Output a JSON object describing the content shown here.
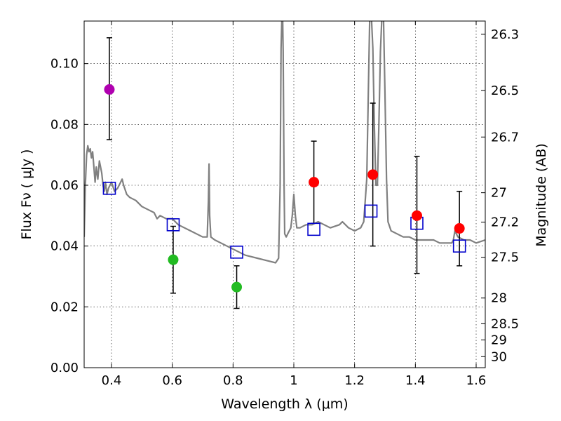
{
  "chart_data": {
    "type": "scatter",
    "title": "",
    "xlabel": "Wavelength  λ (μm)",
    "ylabel": "Flux  Fν  ( μJy )",
    "y2label": "Magnitude (AB)",
    "xlim": [
      0.31,
      1.63
    ],
    "ylim": [
      0.0,
      0.114
    ],
    "grid": true,
    "x_ticks": [
      0.4,
      0.6,
      0.8,
      1.0,
      1.2,
      1.4,
      1.6
    ],
    "x_tick_labels": [
      "0.4",
      "0.6",
      "0.8",
      "1",
      "1.2",
      "1.4",
      "1.6"
    ],
    "y_ticks": [
      0.0,
      0.02,
      0.04,
      0.06,
      0.08,
      0.1
    ],
    "y_tick_labels": [
      "0.00",
      "0.02",
      "0.04",
      "0.06",
      "0.08",
      "0.10"
    ],
    "mag_ticks": [
      26.3,
      26.5,
      26.7,
      27,
      27.2,
      27.5,
      28,
      28.5,
      29,
      30
    ],
    "mag_tick_labels": [
      "26.3",
      "26.5",
      "26.7",
      "27",
      "27.2",
      "27.5",
      "28",
      "28.5",
      "29",
      "30"
    ],
    "observed_points": [
      {
        "x": 0.393,
        "y": 0.0915,
        "yerr_low": 0.075,
        "yerr_high": 0.1085,
        "color": "#b000b0"
      },
      {
        "x": 0.603,
        "y": 0.0355,
        "yerr_low": 0.0245,
        "yerr_high": 0.0465,
        "color": "#22bb22"
      },
      {
        "x": 0.812,
        "y": 0.0265,
        "yerr_low": 0.0195,
        "yerr_high": 0.0335,
        "color": "#22bb22"
      },
      {
        "x": 1.066,
        "y": 0.061,
        "yerr_low": 0.0475,
        "yerr_high": 0.0745,
        "color": "#ff0000"
      },
      {
        "x": 1.26,
        "y": 0.0635,
        "yerr_low": 0.04,
        "yerr_high": 0.087,
        "color": "#ff0000"
      },
      {
        "x": 1.405,
        "y": 0.05,
        "yerr_low": 0.031,
        "yerr_high": 0.0695,
        "color": "#ff0000"
      },
      {
        "x": 1.545,
        "y": 0.0458,
        "yerr_low": 0.0335,
        "yerr_high": 0.058,
        "color": "#ff0000"
      }
    ],
    "model_points": [
      {
        "x": 0.393,
        "y": 0.059
      },
      {
        "x": 0.603,
        "y": 0.047
      },
      {
        "x": 0.812,
        "y": 0.038
      },
      {
        "x": 1.066,
        "y": 0.0455
      },
      {
        "x": 1.254,
        "y": 0.0515
      },
      {
        "x": 1.405,
        "y": 0.0475
      },
      {
        "x": 1.545,
        "y": 0.04
      }
    ],
    "model_spectrum": {
      "color": "#808080",
      "x": [
        0.31,
        0.314,
        0.318,
        0.322,
        0.326,
        0.33,
        0.334,
        0.338,
        0.342,
        0.346,
        0.35,
        0.355,
        0.36,
        0.364,
        0.368,
        0.372,
        0.376,
        0.38,
        0.385,
        0.39,
        0.395,
        0.4,
        0.41,
        0.42,
        0.43,
        0.435,
        0.44,
        0.45,
        0.46,
        0.48,
        0.5,
        0.52,
        0.54,
        0.55,
        0.56,
        0.58,
        0.6,
        0.62,
        0.64,
        0.66,
        0.68,
        0.7,
        0.715,
        0.719,
        0.721,
        0.723,
        0.727,
        0.74,
        0.76,
        0.78,
        0.8,
        0.82,
        0.84,
        0.86,
        0.88,
        0.9,
        0.92,
        0.94,
        0.95,
        0.955,
        0.958,
        0.961,
        0.963,
        0.965,
        0.968,
        0.97,
        0.975,
        0.98,
        0.99,
        0.995,
        1.0,
        1.005,
        1.01,
        1.02,
        1.04,
        1.06,
        1.08,
        1.1,
        1.12,
        1.15,
        1.16,
        1.18,
        1.2,
        1.22,
        1.23,
        1.24,
        1.245,
        1.25,
        1.255,
        1.26,
        1.265,
        1.27,
        1.275,
        1.28,
        1.285,
        1.29,
        1.295,
        1.3,
        1.305,
        1.31,
        1.32,
        1.34,
        1.36,
        1.38,
        1.4,
        1.42,
        1.44,
        1.46,
        1.48,
        1.5,
        1.52,
        1.525,
        1.53,
        1.54,
        1.56,
        1.58,
        1.6,
        1.63
      ],
      "y": [
        0.043,
        0.06,
        0.07,
        0.073,
        0.071,
        0.072,
        0.069,
        0.071,
        0.066,
        0.061,
        0.066,
        0.062,
        0.068,
        0.066,
        0.064,
        0.06,
        0.058,
        0.061,
        0.057,
        0.059,
        0.06,
        0.061,
        0.058,
        0.059,
        0.061,
        0.062,
        0.06,
        0.057,
        0.056,
        0.055,
        0.053,
        0.052,
        0.051,
        0.049,
        0.05,
        0.049,
        0.049,
        0.047,
        0.046,
        0.045,
        0.044,
        0.043,
        0.043,
        0.055,
        0.067,
        0.05,
        0.043,
        0.042,
        0.041,
        0.04,
        0.039,
        0.038,
        0.037,
        0.0365,
        0.036,
        0.0355,
        0.035,
        0.0345,
        0.036,
        0.06,
        0.105,
        0.116,
        0.116,
        0.104,
        0.06,
        0.044,
        0.043,
        0.044,
        0.046,
        0.05,
        0.057,
        0.05,
        0.046,
        0.046,
        0.047,
        0.047,
        0.048,
        0.047,
        0.046,
        0.047,
        0.048,
        0.046,
        0.045,
        0.046,
        0.048,
        0.062,
        0.09,
        0.116,
        0.116,
        0.105,
        0.08,
        0.06,
        0.06,
        0.08,
        0.104,
        0.116,
        0.116,
        0.09,
        0.062,
        0.048,
        0.045,
        0.044,
        0.043,
        0.043,
        0.042,
        0.042,
        0.042,
        0.042,
        0.041,
        0.041,
        0.041,
        0.042,
        0.045,
        0.043,
        0.042,
        0.042,
        0.041,
        0.042
      ]
    }
  }
}
